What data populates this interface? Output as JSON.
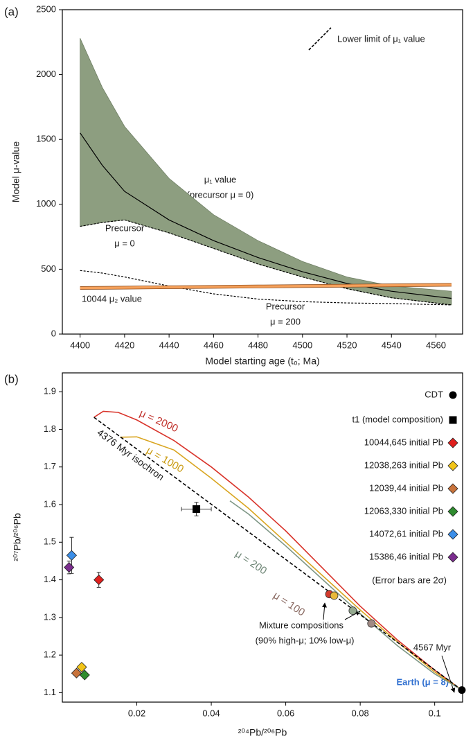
{
  "chart_data": [
    {
      "type": "line",
      "panel": "(a)",
      "xlabel": "Model starting age (t₀; Ma)",
      "ylabel": "Model μ-value",
      "xlim": [
        4392,
        4572
      ],
      "ylim": [
        0,
        2500
      ],
      "xticks": [
        4400,
        4420,
        4440,
        4460,
        4480,
        4500,
        4520,
        4540,
        4560
      ],
      "yticks": [
        0,
        500,
        1000,
        1500,
        2000,
        2500
      ],
      "x": [
        4400,
        4410,
        4420,
        4440,
        4460,
        4480,
        4500,
        4520,
        4540,
        4567
      ],
      "band": {
        "color": "#8d9e80",
        "upper": [
          2280,
          1900,
          1600,
          1200,
          920,
          720,
          560,
          440,
          370,
          330
        ]
      },
      "series": [
        {
          "color": "#000000",
          "values": [
            1550,
            1300,
            1100,
            880,
            720,
            590,
            480,
            390,
            330,
            275
          ]
        },
        {
          "name": "Lower limit of μ₁ value",
          "color": "#000000",
          "dashed": true,
          "values": [
            830,
            860,
            880,
            780,
            660,
            540,
            440,
            350,
            280,
            225
          ]
        },
        {
          "color": "#000000",
          "dashed": true,
          "values": [
            490,
            470,
            440,
            370,
            310,
            270,
            250,
            240,
            235,
            225
          ]
        },
        {
          "color": "#f5a05a",
          "values": [
            355,
            356.5,
            358,
            361,
            364,
            367,
            370,
            373,
            376,
            380
          ]
        }
      ],
      "annotations": [
        "μ₁ value",
        "(precursor μ = 0)",
        "Precursor",
        "μ = 0",
        "10044 μ₂ value",
        "Precursor",
        "μ = 200"
      ]
    },
    {
      "type": "scatter",
      "panel": "(b)",
      "xlabel": "²⁰⁴Pb/²⁰⁶Pb",
      "ylabel": "²⁰⁷Pb/²⁰⁶Pb",
      "xlim": [
        0,
        0.1075
      ],
      "ylim": [
        1.075,
        1.95
      ],
      "xticks": [
        0.02,
        0.04,
        0.06,
        0.08,
        0.1
      ],
      "yticks": [
        1.1,
        1.2,
        1.3,
        1.4,
        1.5,
        1.6,
        1.7,
        1.8,
        1.9
      ],
      "isochron": {
        "label": "4376 Myr isochron",
        "x": [
          0.0085,
          0.1073
        ],
        "values": [
          1.832,
          1.107
        ]
      },
      "curves": [
        {
          "color": "#d9342b",
          "x": [
            0.0085,
            0.011,
            0.015,
            0.02,
            0.03,
            0.04,
            0.05,
            0.06,
            0.07,
            0.08,
            0.09,
            0.1,
            0.1073
          ],
          "values": [
            1.832,
            1.848,
            1.845,
            1.825,
            1.77,
            1.7,
            1.62,
            1.53,
            1.43,
            1.33,
            1.24,
            1.16,
            1.107
          ]
        },
        {
          "color": "#d9a520",
          "x": [
            0.0155,
            0.02,
            0.03,
            0.04,
            0.05,
            0.06,
            0.07,
            0.08,
            0.09,
            0.1,
            0.1073
          ],
          "values": [
            1.779,
            1.78,
            1.745,
            1.67,
            1.59,
            1.5,
            1.41,
            1.32,
            1.235,
            1.155,
            1.107
          ]
        },
        {
          "color": "#7d9685",
          "x": [
            0.045,
            0.05,
            0.06,
            0.07,
            0.08,
            0.09,
            0.1,
            0.1073
          ],
          "values": [
            1.61,
            1.575,
            1.49,
            1.4,
            1.31,
            1.225,
            1.15,
            1.107
          ]
        }
      ],
      "labels": [
        {
          "text": "μ = 2000",
          "color": "#c0302a"
        },
        {
          "text": "μ = 1000",
          "color": "#c99a10"
        },
        {
          "text": "μ = 200",
          "color": "#6d8575"
        },
        {
          "text": "μ = 100",
          "color": "#8a6a62"
        }
      ],
      "series": [
        {
          "name": "CDT",
          "marker": "circle",
          "color": "#000000",
          "x": [
            0.1073
          ],
          "values": [
            1.107
          ]
        },
        {
          "name": "t1 (model composition)",
          "marker": "square",
          "color": "#000000",
          "x": [
            0.036
          ],
          "values": [
            1.588
          ],
          "xerr": [
            0.004
          ],
          "yerr": [
            0.018
          ]
        },
        {
          "name": "10044,645 initial Pb",
          "marker": "diamond",
          "color": "#e0201e",
          "x": [
            0.0098
          ],
          "values": [
            1.4
          ],
          "yerr": [
            0.02
          ]
        },
        {
          "name": "12038,263 initial Pb",
          "marker": "diamond",
          "color": "#f2c418",
          "x": [
            0.0052
          ],
          "values": [
            1.168
          ]
        },
        {
          "name": "12039,44 initial Pb",
          "marker": "diamond",
          "color": "#c8733b",
          "x": [
            0.0038
          ],
          "values": [
            1.152
          ]
        },
        {
          "name": "12063,330 initial Pb",
          "marker": "diamond",
          "color": "#2e8b2e",
          "x": [
            0.006
          ],
          "values": [
            1.147
          ]
        },
        {
          "name": "14072,61 initial Pb",
          "marker": "diamond",
          "color": "#3b8ee8",
          "x": [
            0.0025
          ],
          "values": [
            1.465
          ],
          "yerr": [
            0.048
          ]
        },
        {
          "name": "15386,46 initial Pb",
          "marker": "diamond",
          "color": "#7b2d8e",
          "x": [
            0.0018
          ],
          "values": [
            1.433
          ],
          "yerr": [
            0.017
          ]
        }
      ],
      "mixture": {
        "colors": [
          "#d33a2c",
          "#e8b83a",
          "#93a88e",
          "#a08a84"
        ],
        "x": [
          0.0717,
          0.073,
          0.078,
          0.083
        ],
        "values": [
          1.362,
          1.358,
          1.318,
          1.284
        ]
      },
      "notes": [
        "(Error bars are 2σ)",
        "Mixture compositions",
        "(90% high-μ; 10% low-μ)",
        "4567 Myr",
        "Earth (μ = 8)"
      ]
    }
  ]
}
